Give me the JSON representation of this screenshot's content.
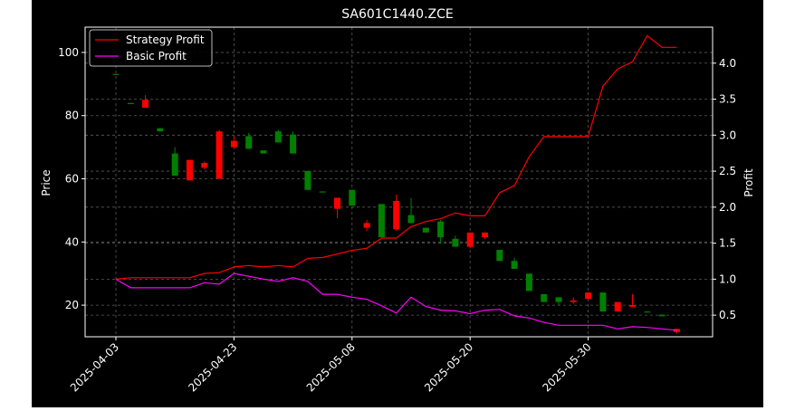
{
  "chart_data": {
    "type": "candlestick-with-lines",
    "title": "SA601C1440.ZCE",
    "xlabel": "",
    "ylabel_left": "Price",
    "ylabel_right": "Profit",
    "ylim_left": [
      10,
      108
    ],
    "ylim_right": [
      0.2,
      4.5
    ],
    "y_ticks_left": [
      "20",
      "40",
      "60",
      "80",
      "100"
    ],
    "y_ticks_right": [
      "0.5",
      "1.0",
      "1.5",
      "2.0",
      "2.5",
      "3.0",
      "3.5",
      "4.0"
    ],
    "x_ticks": [
      "2025-04-03",
      "2025-04-23",
      "2025-05-08",
      "2025-05-20",
      "2025-05-30"
    ],
    "grid": true,
    "legend_position": "top-left",
    "colors": {
      "background": "#000000",
      "text": "#ffffff",
      "up": "#008000",
      "down": "#ff0000",
      "strategy": "#ff0000",
      "basic": "#ff00ff",
      "grid": "#808080"
    },
    "candles": [
      {
        "o": 93.2,
        "h": 93.2,
        "l": 93.2,
        "c": 93.2
      },
      {
        "o": 84.0,
        "h": 84.0,
        "l": 84.0,
        "c": 84.0
      },
      {
        "o": 85.0,
        "h": 86.5,
        "l": 82.5,
        "c": 82.5
      },
      {
        "o": 75.0,
        "h": 76.0,
        "l": 75.0,
        "c": 76.0
      },
      {
        "o": 61.0,
        "h": 70.0,
        "l": 61.0,
        "c": 68.0
      },
      {
        "o": 66.0,
        "h": 66.0,
        "l": 59.5,
        "c": 59.5
      },
      {
        "o": 65.0,
        "h": 65.5,
        "l": 63.0,
        "c": 63.5
      },
      {
        "o": 75.0,
        "h": 75.5,
        "l": 60.0,
        "c": 60.0
      },
      {
        "o": 72.0,
        "h": 73.5,
        "l": 69.5,
        "c": 70.0
      },
      {
        "o": 69.5,
        "h": 74.5,
        "l": 69.5,
        "c": 73.5
      },
      {
        "o": 68.0,
        "h": 69.0,
        "l": 68.0,
        "c": 69.0
      },
      {
        "o": 71.5,
        "h": 75.5,
        "l": 71.5,
        "c": 75.0
      },
      {
        "o": 68.0,
        "h": 75.0,
        "l": 68.0,
        "c": 74.0
      },
      {
        "o": 56.5,
        "h": 62.5,
        "l": 56.5,
        "c": 62.5
      },
      {
        "o": 56.0,
        "h": 56.0,
        "l": 56.0,
        "c": 56.0
      },
      {
        "o": 54.0,
        "h": 54.0,
        "l": 47.5,
        "c": 50.5
      },
      {
        "o": 51.5,
        "h": 56.5,
        "l": 51.5,
        "c": 56.5
      },
      {
        "o": 46.0,
        "h": 47.0,
        "l": 43.5,
        "c": 44.5
      },
      {
        "o": 41.5,
        "h": 52.0,
        "l": 41.5,
        "c": 52.0
      },
      {
        "o": 53.0,
        "h": 55.0,
        "l": 43.5,
        "c": 44.0
      },
      {
        "o": 46.0,
        "h": 54.0,
        "l": 46.0,
        "c": 48.5
      },
      {
        "o": 43.0,
        "h": 44.5,
        "l": 43.0,
        "c": 44.5
      },
      {
        "o": 41.5,
        "h": 47.0,
        "l": 39.5,
        "c": 46.5
      },
      {
        "o": 38.5,
        "h": 42.0,
        "l": 38.5,
        "c": 41.0
      },
      {
        "o": 43.0,
        "h": 43.0,
        "l": 38.0,
        "c": 38.5
      },
      {
        "o": 43.0,
        "h": 43.0,
        "l": 41.0,
        "c": 41.5
      },
      {
        "o": 34.0,
        "h": 37.5,
        "l": 34.0,
        "c": 37.5
      },
      {
        "o": 31.5,
        "h": 35.0,
        "l": 31.5,
        "c": 34.0
      },
      {
        "o": 24.5,
        "h": 30.0,
        "l": 24.5,
        "c": 30.0
      },
      {
        "o": 21.0,
        "h": 23.5,
        "l": 21.0,
        "c": 23.5
      },
      {
        "o": 21.0,
        "h": 22.5,
        "l": 20.0,
        "c": 22.5
      },
      {
        "o": 21.5,
        "h": 22.5,
        "l": 20.5,
        "c": 21.0
      },
      {
        "o": 24.0,
        "h": 24.0,
        "l": 22.0,
        "c": 22.0
      },
      {
        "o": 18.0,
        "h": 24.0,
        "l": 18.0,
        "c": 24.0
      },
      {
        "o": 21.0,
        "h": 21.0,
        "l": 18.0,
        "c": 18.0
      },
      {
        "o": 20.0,
        "h": 23.5,
        "l": 19.5,
        "c": 19.5
      },
      {
        "o": 18.0,
        "h": 18.0,
        "l": 18.0,
        "c": 18.0
      },
      {
        "o": 16.5,
        "h": 17.0,
        "l": 16.5,
        "c": 17.0
      },
      {
        "o": 12.5,
        "h": 12.5,
        "l": 11.0,
        "c": 11.5
      }
    ],
    "series": [
      {
        "name": "Strategy Profit",
        "values": [
          1.0,
          1.02,
          1.02,
          1.02,
          1.02,
          1.02,
          1.08,
          1.09,
          1.17,
          1.19,
          1.17,
          1.19,
          1.17,
          1.29,
          1.3,
          1.35,
          1.4,
          1.43,
          1.57,
          1.57,
          1.73,
          1.8,
          1.84,
          1.92,
          1.88,
          1.88,
          2.2,
          2.3,
          2.7,
          2.98,
          2.98,
          2.98,
          2.98,
          3.68,
          3.92,
          4.02,
          4.38,
          4.22,
          4.22
        ]
      },
      {
        "name": "Basic Profit",
        "values": [
          1.0,
          0.88,
          0.88,
          0.88,
          0.88,
          0.88,
          0.95,
          0.93,
          1.08,
          1.04,
          1.0,
          0.97,
          1.02,
          0.97,
          0.79,
          0.79,
          0.75,
          0.72,
          0.63,
          0.53,
          0.75,
          0.62,
          0.57,
          0.56,
          0.52,
          0.57,
          0.58,
          0.49,
          0.46,
          0.4,
          0.36,
          0.36,
          0.36,
          0.36,
          0.31,
          0.34,
          0.33,
          0.31,
          0.29
        ]
      }
    ]
  }
}
